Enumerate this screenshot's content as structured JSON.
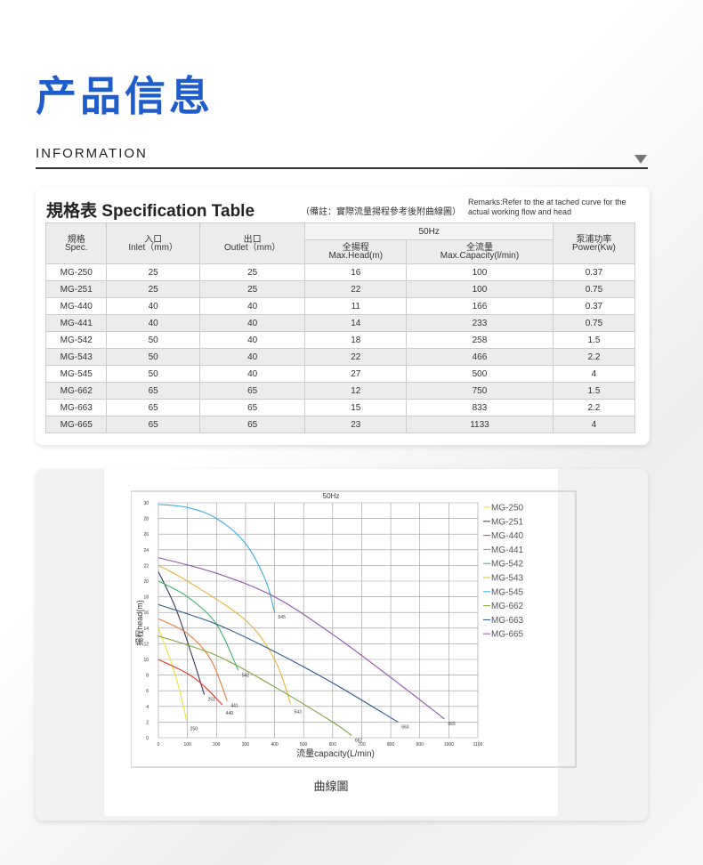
{
  "header": {
    "title": "产品信息",
    "subtitle": "INFORMATION"
  },
  "spec": {
    "title": "規格表 Specification Table",
    "note": "（備註：實際流量揚程參考後附曲線圖）",
    "remarks": "Remarks:Refer to the at tached curve for the actual working flow and head",
    "group": "50Hz",
    "columns": [
      {
        "cn": "規格",
        "en": "Spec."
      },
      {
        "cn": "入口",
        "en": "Inlet（mm）"
      },
      {
        "cn": "出口",
        "en": "Outlet（mm）"
      },
      {
        "cn": "全揚程",
        "en": "Max.Head(m)"
      },
      {
        "cn": "全流量",
        "en": "Max.Capacity(l/min)"
      },
      {
        "cn": "泵浦功率",
        "en": "Power(Kw)"
      }
    ],
    "rows": [
      [
        "MG-250",
        "25",
        "25",
        "16",
        "100",
        "0.37"
      ],
      [
        "MG-251",
        "25",
        "25",
        "22",
        "100",
        "0.75"
      ],
      [
        "MG-440",
        "40",
        "40",
        "11",
        "166",
        "0.37"
      ],
      [
        "MG-441",
        "40",
        "40",
        "14",
        "233",
        "0.75"
      ],
      [
        "MG-542",
        "50",
        "40",
        "18",
        "258",
        "1.5"
      ],
      [
        "MG-543",
        "50",
        "40",
        "22",
        "466",
        "2.2"
      ],
      [
        "MG-545",
        "50",
        "40",
        "27",
        "500",
        "4"
      ],
      [
        "MG-662",
        "65",
        "65",
        "12",
        "750",
        "1.5"
      ],
      [
        "MG-663",
        "65",
        "65",
        "15",
        "833",
        "2.2"
      ],
      [
        "MG-665",
        "65",
        "65",
        "23",
        "1133",
        "4"
      ]
    ]
  },
  "chart_data": {
    "type": "line",
    "title": "50Hz",
    "xlabel": "流量capacity(L/min)",
    "ylabel": "揚程head(m)",
    "xlim": [
      0,
      1100
    ],
    "ylim": [
      0,
      30
    ],
    "xticks": [
      0,
      100,
      200,
      300,
      400,
      500,
      600,
      700,
      800,
      900,
      1000,
      1100
    ],
    "yticks": [
      0,
      2,
      4,
      6,
      8,
      10,
      12,
      14,
      16,
      18,
      20,
      22,
      24,
      26,
      28,
      30
    ],
    "grid": true,
    "legend": "right",
    "series": [
      {
        "name": "MG-250",
        "label": "250",
        "color": "#f2de3a",
        "points": [
          [
            0,
            14
          ],
          [
            50,
            9
          ],
          [
            80,
            5
          ],
          [
            97,
            2.2
          ]
        ]
      },
      {
        "name": "MG-251",
        "label": "251",
        "color": "#33395a",
        "points": [
          [
            0,
            21.2
          ],
          [
            60,
            16.5
          ],
          [
            120,
            10
          ],
          [
            158,
            5.5
          ]
        ]
      },
      {
        "name": "MG-440",
        "label": "440",
        "color": "#e8302a",
        "points": [
          [
            0,
            10
          ],
          [
            100,
            8.2
          ],
          [
            160,
            6.5
          ],
          [
            220,
            4.2
          ]
        ]
      },
      {
        "name": "MG-441",
        "label": "441",
        "color": "#e87a3c",
        "points": [
          [
            0,
            15.2
          ],
          [
            100,
            13.3
          ],
          [
            180,
            10
          ],
          [
            237,
            4.7
          ]
        ]
      },
      {
        "name": "MG-542",
        "label": "542",
        "color": "#3bb56a",
        "points": [
          [
            0,
            20
          ],
          [
            100,
            18
          ],
          [
            200,
            14.5
          ],
          [
            275,
            8.6
          ]
        ]
      },
      {
        "name": "MG-543",
        "label": "543",
        "color": "#e8b23a",
        "points": [
          [
            0,
            22
          ],
          [
            100,
            20
          ],
          [
            300,
            15
          ],
          [
            400,
            10
          ],
          [
            455,
            4.4
          ]
        ]
      },
      {
        "name": "MG-545",
        "label": "545",
        "color": "#3aaee0",
        "points": [
          [
            0,
            29.8
          ],
          [
            100,
            29.4
          ],
          [
            200,
            28
          ],
          [
            300,
            24.8
          ],
          [
            370,
            20
          ],
          [
            400,
            16
          ]
        ]
      },
      {
        "name": "MG-662",
        "label": "662",
        "color": "#79a43a",
        "points": [
          [
            0,
            13
          ],
          [
            200,
            10.5
          ],
          [
            400,
            6.5
          ],
          [
            600,
            2
          ],
          [
            665,
            0.3
          ]
        ]
      },
      {
        "name": "MG-663",
        "label": "663",
        "color": "#2b5a8e",
        "points": [
          [
            0,
            17
          ],
          [
            200,
            14.5
          ],
          [
            400,
            11
          ],
          [
            600,
            7
          ],
          [
            825,
            2
          ]
        ]
      },
      {
        "name": "MG-665",
        "label": "665",
        "color": "#8e55a8",
        "points": [
          [
            0,
            23
          ],
          [
            200,
            21
          ],
          [
            400,
            18
          ],
          [
            600,
            13.2
          ],
          [
            800,
            7.7
          ],
          [
            985,
            2.4
          ]
        ]
      }
    ]
  },
  "chart_caption": "曲線圖"
}
